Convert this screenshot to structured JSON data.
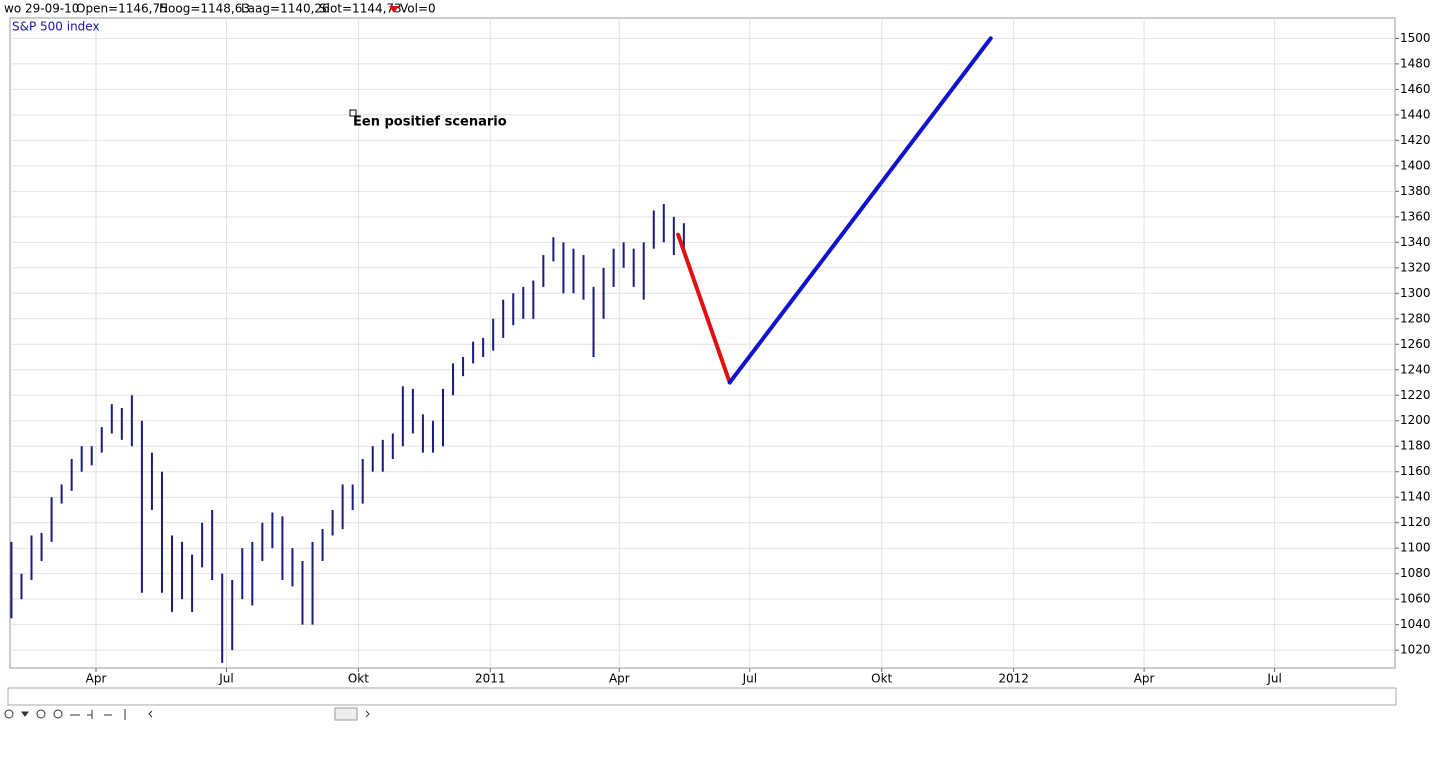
{
  "header": {
    "date": "wo 29-09-10",
    "open": "Open=1146,75",
    "high": "Hoog=1148,63",
    "low": "Laag=1140,26",
    "close": "Slot=1144,73",
    "volume": "Vol=0"
  },
  "chart_data": {
    "type": "ohlc",
    "title": "S&P 500 index",
    "title_color": "#1a1aa0",
    "annotation": "Een positief scenario",
    "bar_color": "#1a1a80",
    "xlim": [
      "2010-01-31",
      "2012-09-23"
    ],
    "xticks": [
      {
        "value": "2010-04-01",
        "label": "Apr"
      },
      {
        "value": "2010-07-01",
        "label": "Jul"
      },
      {
        "value": "2010-10-01",
        "label": "Okt"
      },
      {
        "value": "2011-01-01",
        "label": "2011"
      },
      {
        "value": "2011-04-01",
        "label": "Apr"
      },
      {
        "value": "2011-07-01",
        "label": "Jul"
      },
      {
        "value": "2011-10-01",
        "label": "Okt"
      },
      {
        "value": "2012-01-01",
        "label": "2012"
      },
      {
        "value": "2012-04-01",
        "label": "Apr"
      },
      {
        "value": "2012-07-01",
        "label": "Jul"
      }
    ],
    "ylim": [
      1006,
      1516
    ],
    "yticks": [
      1020,
      1040,
      1060,
      1080,
      1100,
      1120,
      1140,
      1160,
      1180,
      1200,
      1220,
      1240,
      1260,
      1280,
      1300,
      1320,
      1340,
      1360,
      1380,
      1400,
      1420,
      1440,
      1460,
      1480,
      1500
    ],
    "grid": true,
    "x": [
      "2010-02-01",
      "2010-02-08",
      "2010-02-15",
      "2010-02-22",
      "2010-03-01",
      "2010-03-08",
      "2010-03-15",
      "2010-03-22",
      "2010-03-29",
      "2010-04-05",
      "2010-04-12",
      "2010-04-19",
      "2010-04-26",
      "2010-05-03",
      "2010-05-10",
      "2010-05-17",
      "2010-05-24",
      "2010-05-31",
      "2010-06-07",
      "2010-06-14",
      "2010-06-21",
      "2010-06-28",
      "2010-07-05",
      "2010-07-12",
      "2010-07-19",
      "2010-07-26",
      "2010-08-02",
      "2010-08-09",
      "2010-08-16",
      "2010-08-23",
      "2010-08-30",
      "2010-09-06",
      "2010-09-13",
      "2010-09-20",
      "2010-09-27",
      "2010-10-04",
      "2010-10-11",
      "2010-10-18",
      "2010-10-25",
      "2010-11-01",
      "2010-11-08",
      "2010-11-15",
      "2010-11-22",
      "2010-11-29",
      "2010-12-06",
      "2010-12-13",
      "2010-12-20",
      "2010-12-27",
      "2011-01-03",
      "2011-01-10",
      "2011-01-17",
      "2011-01-24",
      "2011-01-31",
      "2011-02-07",
      "2011-02-14",
      "2011-02-21",
      "2011-02-28",
      "2011-03-07",
      "2011-03-14",
      "2011-03-21",
      "2011-03-28",
      "2011-04-04",
      "2011-04-11",
      "2011-04-18",
      "2011-04-25",
      "2011-05-02",
      "2011-05-09",
      "2011-05-16"
    ],
    "high": [
      1105,
      1080,
      1110,
      1112,
      1140,
      1150,
      1170,
      1180,
      1180,
      1195,
      1213,
      1210,
      1220,
      1200,
      1175,
      1160,
      1110,
      1105,
      1095,
      1120,
      1130,
      1080,
      1075,
      1100,
      1105,
      1120,
      1128,
      1125,
      1100,
      1090,
      1105,
      1115,
      1130,
      1150,
      1150,
      1170,
      1180,
      1185,
      1190,
      1227,
      1225,
      1205,
      1200,
      1225,
      1245,
      1250,
      1262,
      1265,
      1280,
      1295,
      1300,
      1305,
      1310,
      1330,
      1344,
      1340,
      1335,
      1330,
      1305,
      1320,
      1335,
      1340,
      1335,
      1340,
      1365,
      1370,
      1360,
      1355
    ],
    "low": [
      1045,
      1060,
      1075,
      1090,
      1105,
      1135,
      1145,
      1160,
      1165,
      1175,
      1190,
      1185,
      1180,
      1065,
      1130,
      1065,
      1050,
      1060,
      1050,
      1085,
      1075,
      1010,
      1020,
      1060,
      1055,
      1090,
      1100,
      1075,
      1070,
      1040,
      1040,
      1090,
      1110,
      1115,
      1130,
      1135,
      1160,
      1160,
      1170,
      1180,
      1190,
      1175,
      1175,
      1180,
      1220,
      1235,
      1245,
      1250,
      1255,
      1265,
      1275,
      1280,
      1280,
      1305,
      1325,
      1300,
      1300,
      1295,
      1250,
      1280,
      1305,
      1320,
      1305,
      1295,
      1335,
      1340,
      1330,
      1335
    ],
    "lines": [
      {
        "color": "#e01010",
        "x": [
          "2011-05-12",
          "2011-06-17"
        ],
        "values": [
          1346,
          1230
        ]
      },
      {
        "color": "#1010d0",
        "x": [
          "2011-06-17",
          "2011-12-16"
        ],
        "values": [
          1230,
          1500
        ]
      }
    ]
  }
}
